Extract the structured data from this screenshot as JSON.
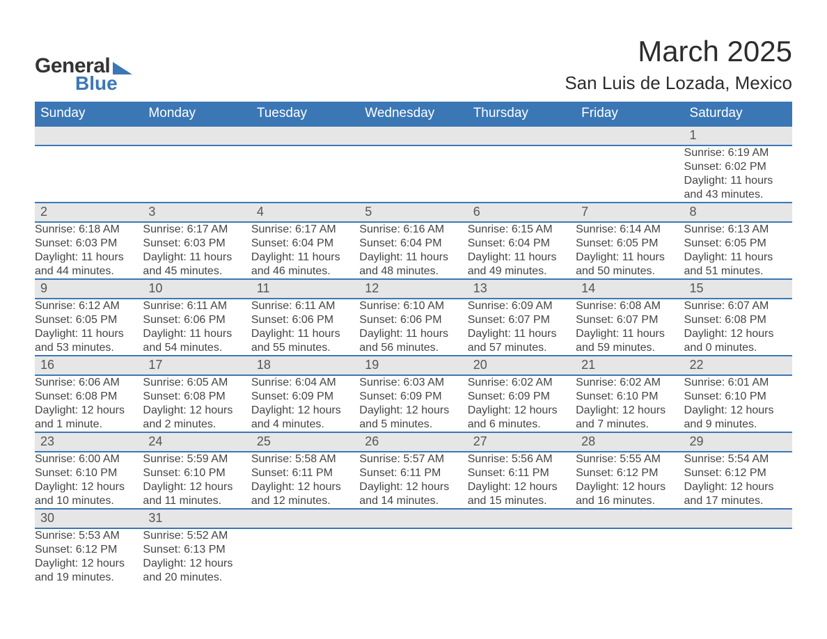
{
  "logo": {
    "text1": "General",
    "text2": "Blue",
    "triangle_color": "#3b77b5"
  },
  "title": {
    "month": "March 2025",
    "location": "San Luis de Lozada, Mexico"
  },
  "colors": {
    "header_bg": "#3b77b5",
    "header_text": "#ffffff",
    "daynum_bg": "#e6e6e6",
    "row_border": "#3b77b5",
    "body_text": "#444444",
    "page_bg": "#ffffff"
  },
  "fonts": {
    "title_size_pt": 42,
    "location_size_pt": 26,
    "header_size_pt": 19,
    "daynum_size_pt": 18,
    "detail_size_pt": 16
  },
  "weekdays": [
    "Sunday",
    "Monday",
    "Tuesday",
    "Wednesday",
    "Thursday",
    "Friday",
    "Saturday"
  ],
  "weeks": [
    [
      null,
      null,
      null,
      null,
      null,
      null,
      {
        "n": "1",
        "sr": "Sunrise: 6:19 AM",
        "ss": "Sunset: 6:02 PM",
        "d1": "Daylight: 11 hours",
        "d2": "and 43 minutes."
      }
    ],
    [
      {
        "n": "2",
        "sr": "Sunrise: 6:18 AM",
        "ss": "Sunset: 6:03 PM",
        "d1": "Daylight: 11 hours",
        "d2": "and 44 minutes."
      },
      {
        "n": "3",
        "sr": "Sunrise: 6:17 AM",
        "ss": "Sunset: 6:03 PM",
        "d1": "Daylight: 11 hours",
        "d2": "and 45 minutes."
      },
      {
        "n": "4",
        "sr": "Sunrise: 6:17 AM",
        "ss": "Sunset: 6:04 PM",
        "d1": "Daylight: 11 hours",
        "d2": "and 46 minutes."
      },
      {
        "n": "5",
        "sr": "Sunrise: 6:16 AM",
        "ss": "Sunset: 6:04 PM",
        "d1": "Daylight: 11 hours",
        "d2": "and 48 minutes."
      },
      {
        "n": "6",
        "sr": "Sunrise: 6:15 AM",
        "ss": "Sunset: 6:04 PM",
        "d1": "Daylight: 11 hours",
        "d2": "and 49 minutes."
      },
      {
        "n": "7",
        "sr": "Sunrise: 6:14 AM",
        "ss": "Sunset: 6:05 PM",
        "d1": "Daylight: 11 hours",
        "d2": "and 50 minutes."
      },
      {
        "n": "8",
        "sr": "Sunrise: 6:13 AM",
        "ss": "Sunset: 6:05 PM",
        "d1": "Daylight: 11 hours",
        "d2": "and 51 minutes."
      }
    ],
    [
      {
        "n": "9",
        "sr": "Sunrise: 6:12 AM",
        "ss": "Sunset: 6:05 PM",
        "d1": "Daylight: 11 hours",
        "d2": "and 53 minutes."
      },
      {
        "n": "10",
        "sr": "Sunrise: 6:11 AM",
        "ss": "Sunset: 6:06 PM",
        "d1": "Daylight: 11 hours",
        "d2": "and 54 minutes."
      },
      {
        "n": "11",
        "sr": "Sunrise: 6:11 AM",
        "ss": "Sunset: 6:06 PM",
        "d1": "Daylight: 11 hours",
        "d2": "and 55 minutes."
      },
      {
        "n": "12",
        "sr": "Sunrise: 6:10 AM",
        "ss": "Sunset: 6:06 PM",
        "d1": "Daylight: 11 hours",
        "d2": "and 56 minutes."
      },
      {
        "n": "13",
        "sr": "Sunrise: 6:09 AM",
        "ss": "Sunset: 6:07 PM",
        "d1": "Daylight: 11 hours",
        "d2": "and 57 minutes."
      },
      {
        "n": "14",
        "sr": "Sunrise: 6:08 AM",
        "ss": "Sunset: 6:07 PM",
        "d1": "Daylight: 11 hours",
        "d2": "and 59 minutes."
      },
      {
        "n": "15",
        "sr": "Sunrise: 6:07 AM",
        "ss": "Sunset: 6:08 PM",
        "d1": "Daylight: 12 hours",
        "d2": "and 0 minutes."
      }
    ],
    [
      {
        "n": "16",
        "sr": "Sunrise: 6:06 AM",
        "ss": "Sunset: 6:08 PM",
        "d1": "Daylight: 12 hours",
        "d2": "and 1 minute."
      },
      {
        "n": "17",
        "sr": "Sunrise: 6:05 AM",
        "ss": "Sunset: 6:08 PM",
        "d1": "Daylight: 12 hours",
        "d2": "and 2 minutes."
      },
      {
        "n": "18",
        "sr": "Sunrise: 6:04 AM",
        "ss": "Sunset: 6:09 PM",
        "d1": "Daylight: 12 hours",
        "d2": "and 4 minutes."
      },
      {
        "n": "19",
        "sr": "Sunrise: 6:03 AM",
        "ss": "Sunset: 6:09 PM",
        "d1": "Daylight: 12 hours",
        "d2": "and 5 minutes."
      },
      {
        "n": "20",
        "sr": "Sunrise: 6:02 AM",
        "ss": "Sunset: 6:09 PM",
        "d1": "Daylight: 12 hours",
        "d2": "and 6 minutes."
      },
      {
        "n": "21",
        "sr": "Sunrise: 6:02 AM",
        "ss": "Sunset: 6:10 PM",
        "d1": "Daylight: 12 hours",
        "d2": "and 7 minutes."
      },
      {
        "n": "22",
        "sr": "Sunrise: 6:01 AM",
        "ss": "Sunset: 6:10 PM",
        "d1": "Daylight: 12 hours",
        "d2": "and 9 minutes."
      }
    ],
    [
      {
        "n": "23",
        "sr": "Sunrise: 6:00 AM",
        "ss": "Sunset: 6:10 PM",
        "d1": "Daylight: 12 hours",
        "d2": "and 10 minutes."
      },
      {
        "n": "24",
        "sr": "Sunrise: 5:59 AM",
        "ss": "Sunset: 6:10 PM",
        "d1": "Daylight: 12 hours",
        "d2": "and 11 minutes."
      },
      {
        "n": "25",
        "sr": "Sunrise: 5:58 AM",
        "ss": "Sunset: 6:11 PM",
        "d1": "Daylight: 12 hours",
        "d2": "and 12 minutes."
      },
      {
        "n": "26",
        "sr": "Sunrise: 5:57 AM",
        "ss": "Sunset: 6:11 PM",
        "d1": "Daylight: 12 hours",
        "d2": "and 14 minutes."
      },
      {
        "n": "27",
        "sr": "Sunrise: 5:56 AM",
        "ss": "Sunset: 6:11 PM",
        "d1": "Daylight: 12 hours",
        "d2": "and 15 minutes."
      },
      {
        "n": "28",
        "sr": "Sunrise: 5:55 AM",
        "ss": "Sunset: 6:12 PM",
        "d1": "Daylight: 12 hours",
        "d2": "and 16 minutes."
      },
      {
        "n": "29",
        "sr": "Sunrise: 5:54 AM",
        "ss": "Sunset: 6:12 PM",
        "d1": "Daylight: 12 hours",
        "d2": "and 17 minutes."
      }
    ],
    [
      {
        "n": "30",
        "sr": "Sunrise: 5:53 AM",
        "ss": "Sunset: 6:12 PM",
        "d1": "Daylight: 12 hours",
        "d2": "and 19 minutes."
      },
      {
        "n": "31",
        "sr": "Sunrise: 5:52 AM",
        "ss": "Sunset: 6:13 PM",
        "d1": "Daylight: 12 hours",
        "d2": "and 20 minutes."
      },
      null,
      null,
      null,
      null,
      null
    ]
  ]
}
